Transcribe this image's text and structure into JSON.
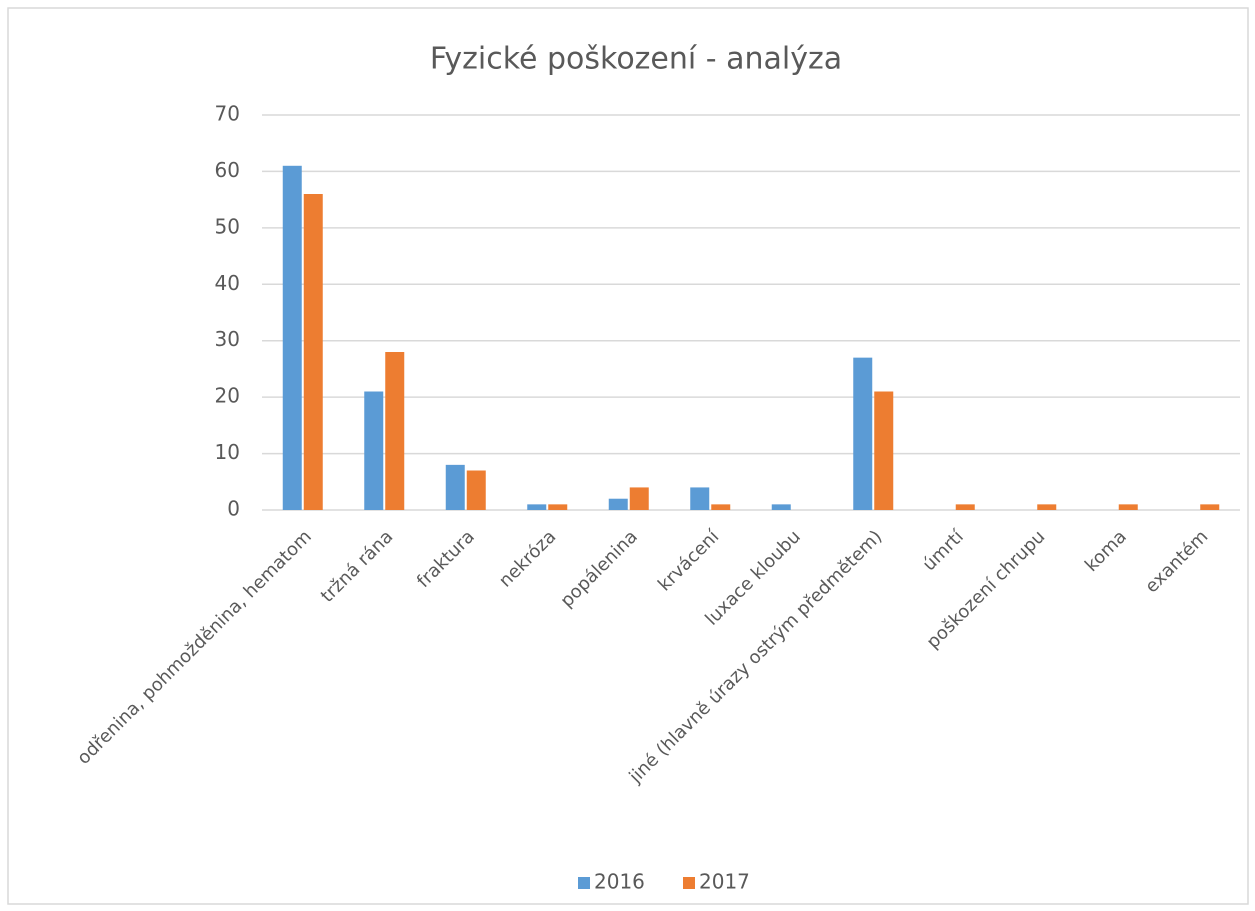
{
  "chart_data": {
    "type": "bar",
    "title": "Fyzické poškození - analýza",
    "categories": [
      "odřenina, pohmožděnina, hematom",
      "tržná rána",
      "fraktura",
      "nekróza",
      "popálenina",
      "krvácení",
      "luxace kloubu",
      "jiné (hlavně úrazy ostrým předmětem)",
      "úmrtí",
      "poškození chrupu",
      "koma",
      "exantém"
    ],
    "series": [
      {
        "name": "2016",
        "color": "#5b9bd5",
        "values": [
          61,
          21,
          8,
          1,
          2,
          4,
          1,
          27,
          0,
          0,
          0,
          0
        ]
      },
      {
        "name": "2017",
        "color": "#ed7d31",
        "values": [
          56,
          28,
          7,
          1,
          4,
          1,
          0,
          21,
          1,
          1,
          1,
          1
        ]
      }
    ],
    "ylim": [
      0,
      70
    ],
    "yticks": [
      0,
      10,
      20,
      30,
      40,
      50,
      60,
      70
    ],
    "grid": true,
    "legend": "bottom"
  }
}
